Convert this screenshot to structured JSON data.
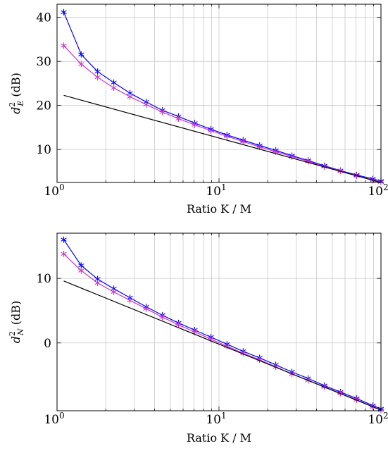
{
  "chart_data": [
    {
      "type": "line",
      "xscale": "log",
      "xlim": [
        1,
        100
      ],
      "ylim": [
        2.5,
        43
      ],
      "xlabel": "Ratio K / M",
      "ylabel": {
        "base": "d",
        "sup": "2",
        "sub": "E",
        "unit": "(dB)"
      },
      "grid": true,
      "x_ticks": [
        {
          "base": "10",
          "exp": "0",
          "value": 1
        },
        {
          "base": "10",
          "exp": "1",
          "value": 10
        },
        {
          "base": "10",
          "exp": "2",
          "value": 100
        }
      ],
      "y_ticks": [
        10,
        20,
        30,
        40
      ],
      "series": [
        {
          "color": "#0000ff",
          "marker": "asterisk",
          "x": [
            1.1,
            1.41,
            1.78,
            2.24,
            2.82,
            3.55,
            4.47,
            5.62,
            7.08,
            8.91,
            11.2,
            14.1,
            17.8,
            22.4,
            28.2,
            35.5,
            44.7,
            56.2,
            70.8,
            89.1,
            100
          ],
          "y": [
            41.2,
            31.6,
            27.7,
            25.2,
            22.8,
            20.8,
            18.9,
            17.5,
            16.0,
            14.6,
            13.3,
            12.1,
            10.9,
            9.8,
            8.6,
            7.5,
            6.3,
            5.2,
            4.2,
            3.3,
            2.8
          ]
        },
        {
          "color": "#cc33cc",
          "marker": "asterisk",
          "x": [
            1.1,
            1.41,
            1.78,
            2.24,
            2.82,
            3.55,
            4.47,
            5.62,
            7.08,
            8.91,
            11.2,
            14.1,
            17.8,
            22.4,
            28.2,
            35.5,
            44.7,
            56.2,
            70.8,
            89.1,
            100
          ],
          "y": [
            33.6,
            29.4,
            26.4,
            24.0,
            22.0,
            20.2,
            18.5,
            17.0,
            15.6,
            14.3,
            13.0,
            11.8,
            10.6,
            9.5,
            8.4,
            7.3,
            6.1,
            5.1,
            4.0,
            3.0,
            2.6
          ]
        },
        {
          "color": "#000000",
          "marker": "none",
          "x": [
            1.1,
            100
          ],
          "y": [
            22.3,
            2.5
          ]
        }
      ]
    },
    {
      "type": "line",
      "xscale": "log",
      "xlim": [
        1,
        100
      ],
      "ylim": [
        -10.5,
        17
      ],
      "xlabel": "Ratio K / M",
      "ylabel": {
        "base": "d",
        "sup": "2",
        "sub": "N",
        "unit": "(dB)"
      },
      "grid": true,
      "x_ticks": [
        {
          "base": "10",
          "exp": "0",
          "value": 1
        },
        {
          "base": "10",
          "exp": "1",
          "value": 10
        },
        {
          "base": "10",
          "exp": "2",
          "value": 100
        }
      ],
      "y_ticks": [
        0,
        10
      ],
      "series": [
        {
          "color": "#0000ff",
          "marker": "asterisk",
          "x": [
            1.1,
            1.41,
            1.78,
            2.24,
            2.82,
            3.55,
            4.47,
            5.62,
            7.08,
            8.91,
            11.2,
            14.1,
            17.8,
            22.4,
            28.2,
            35.5,
            44.7,
            56.2,
            70.8,
            89.1,
            100
          ],
          "y": [
            16.0,
            12.0,
            9.9,
            8.4,
            7.0,
            5.6,
            4.3,
            3.1,
            2.0,
            0.9,
            -0.2,
            -1.3,
            -2.3,
            -3.4,
            -4.5,
            -5.5,
            -6.6,
            -7.6,
            -8.6,
            -9.7,
            -10.2
          ]
        },
        {
          "color": "#cc33cc",
          "marker": "asterisk",
          "x": [
            1.1,
            1.41,
            1.78,
            2.24,
            2.82,
            3.55,
            4.47,
            5.62,
            7.08,
            8.91,
            11.2,
            14.1,
            17.8,
            22.4,
            28.2,
            35.5,
            44.7,
            56.2,
            70.8,
            89.1,
            100
          ],
          "y": [
            13.8,
            11.2,
            9.3,
            7.9,
            6.6,
            5.3,
            4.0,
            2.8,
            1.7,
            0.6,
            -0.5,
            -1.6,
            -2.6,
            -3.7,
            -4.8,
            -5.8,
            -6.8,
            -7.8,
            -8.8,
            -9.9,
            -10.4
          ]
        },
        {
          "color": "#000000",
          "marker": "none",
          "x": [
            1.1,
            100
          ],
          "y": [
            9.6,
            -10.4
          ]
        }
      ]
    }
  ]
}
